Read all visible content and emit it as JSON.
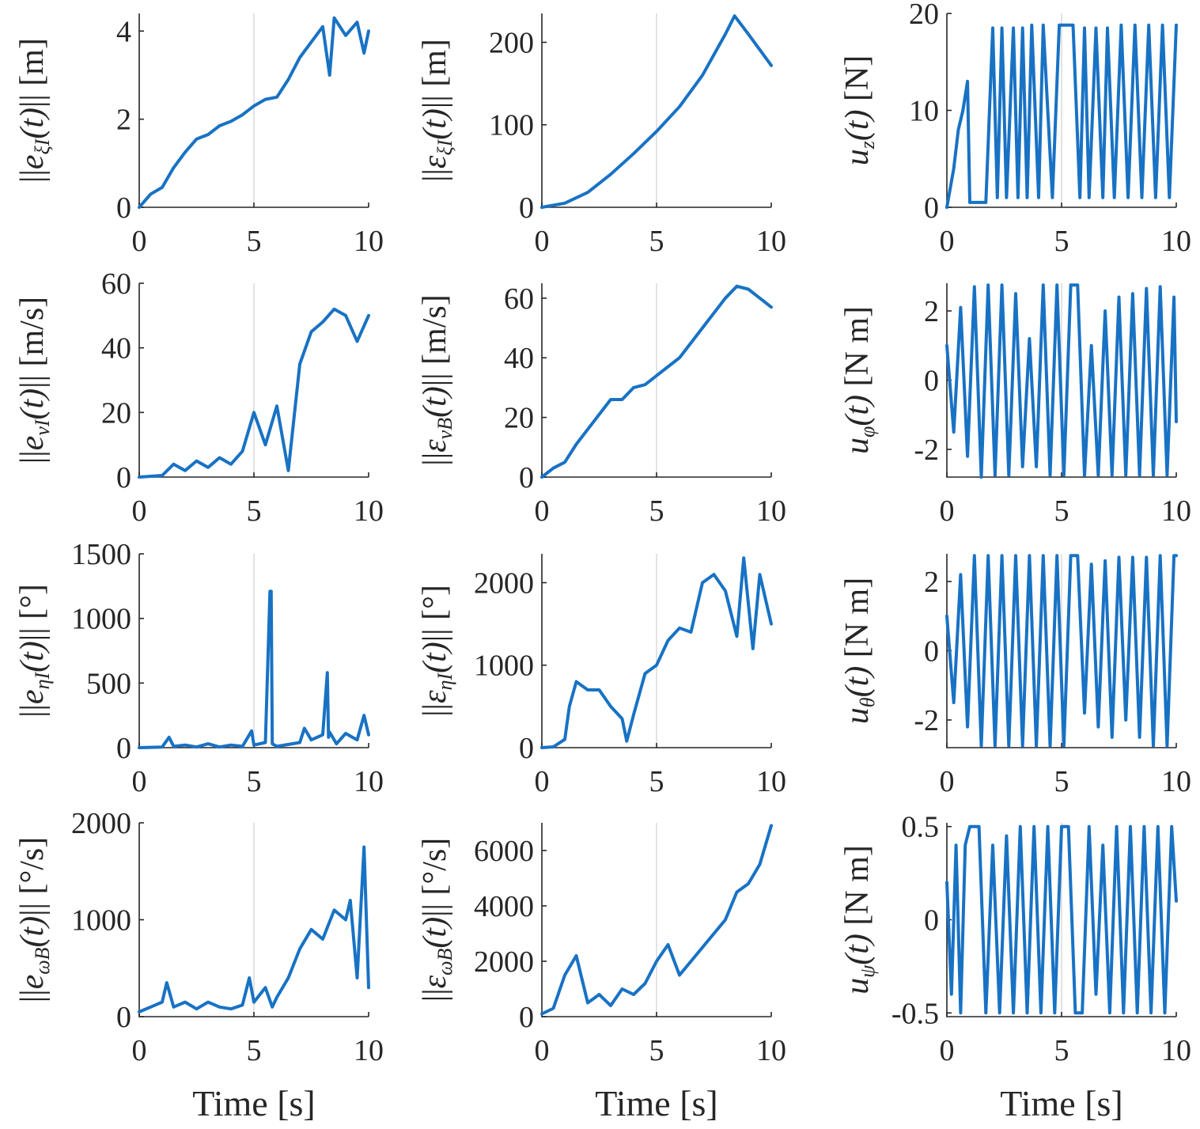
{
  "figure": {
    "line_color": "#1872c4",
    "grid_color": "#dcdcdc",
    "axis_color": "#262626"
  },
  "chart_data": [
    {
      "id": "p1",
      "type": "line",
      "ylabel": "||e_ξI(t)|| [m]",
      "xlabel": "",
      "xlim": [
        0,
        10
      ],
      "ylim": [
        0,
        4.4
      ],
      "xticks": [
        0,
        5,
        10
      ],
      "yticks": [
        0,
        2,
        4
      ],
      "ytick_labels": [
        "0",
        "2",
        "4"
      ],
      "grid_x": [
        5
      ],
      "x": [
        0,
        0.5,
        1,
        1.5,
        2,
        2.5,
        3,
        3.5,
        4,
        4.5,
        5,
        5.5,
        6,
        6.5,
        7,
        7.5,
        8,
        8.3,
        8.5,
        9,
        9.5,
        9.8,
        10
      ],
      "y": [
        0,
        0.3,
        0.45,
        0.9,
        1.25,
        1.55,
        1.65,
        1.85,
        1.95,
        2.1,
        2.3,
        2.45,
        2.5,
        2.9,
        3.4,
        3.75,
        4.1,
        3.0,
        4.3,
        3.9,
        4.2,
        3.5,
        4.0
      ]
    },
    {
      "id": "p2",
      "type": "line",
      "ylabel": "||ε_ξI(t)|| [m]",
      "xlabel": "",
      "xlim": [
        0,
        10
      ],
      "ylim": [
        0,
        235
      ],
      "xticks": [
        0,
        5,
        10
      ],
      "yticks": [
        0,
        100,
        200
      ],
      "ytick_labels": [
        "0",
        "100",
        "200"
      ],
      "grid_x": [
        5
      ],
      "x": [
        0,
        1,
        2,
        3,
        4,
        5,
        6,
        7,
        8,
        8.4,
        9,
        10
      ],
      "y": [
        0,
        5,
        18,
        40,
        65,
        92,
        122,
        160,
        210,
        232,
        210,
        172
      ]
    },
    {
      "id": "p3",
      "type": "line",
      "ylabel": "u_z(t) [N]",
      "xlabel": "",
      "xlim": [
        0,
        10
      ],
      "ylim": [
        0,
        20
      ],
      "xticks": [
        0,
        5,
        10
      ],
      "yticks": [
        0,
        10,
        20
      ],
      "ytick_labels": [
        "0",
        "10",
        "20"
      ],
      "grid_x": [
        5
      ],
      "x": [
        0,
        0.3,
        0.5,
        0.7,
        0.9,
        1.0,
        1.5,
        1.7,
        2.0,
        2.2,
        2.4,
        2.6,
        2.9,
        3.1,
        3.3,
        3.5,
        3.7,
        4.0,
        4.2,
        4.6,
        4.9,
        5.2,
        5.5,
        5.8,
        6.0,
        6.2,
        6.5,
        6.8,
        7.0,
        7.3,
        7.6,
        7.9,
        8.2,
        8.5,
        8.8,
        9.1,
        9.4,
        9.7,
        10
      ],
      "y": [
        0,
        4,
        8,
        10,
        13,
        0.5,
        0.5,
        0.5,
        18.5,
        1,
        18.5,
        1,
        18.5,
        1,
        18.5,
        1,
        18.8,
        1,
        18.8,
        1,
        18.8,
        18.8,
        18.8,
        1,
        18.5,
        1,
        18.5,
        1,
        18.5,
        1,
        18.8,
        1,
        18.8,
        1,
        18.8,
        1,
        18.8,
        1,
        18.8
      ]
    },
    {
      "id": "p4",
      "type": "line",
      "ylabel": "||e_νI(t)|| [m/s]",
      "xlabel": "",
      "xlim": [
        0,
        10
      ],
      "ylim": [
        0,
        60
      ],
      "xticks": [
        0,
        5,
        10
      ],
      "yticks": [
        0,
        20,
        40,
        60
      ],
      "ytick_labels": [
        "0",
        "20",
        "40",
        "60"
      ],
      "grid_x": [
        5
      ],
      "x": [
        0,
        1,
        1.5,
        2,
        2.5,
        3,
        3.5,
        4,
        4.5,
        5,
        5.5,
        6,
        6.5,
        7,
        7.5,
        8,
        8.5,
        9,
        9.5,
        10
      ],
      "y": [
        0,
        0.5,
        4,
        2,
        5,
        3,
        6,
        4,
        8,
        20,
        10,
        22,
        2,
        35,
        45,
        48,
        52,
        50,
        42,
        50
      ]
    },
    {
      "id": "p5",
      "type": "line",
      "ylabel": "||ε_νB(t)|| [m/s]",
      "xlabel": "",
      "xlim": [
        0,
        10
      ],
      "ylim": [
        0,
        65
      ],
      "xticks": [
        0,
        5,
        10
      ],
      "yticks": [
        0,
        20,
        40,
        60
      ],
      "ytick_labels": [
        "0",
        "20",
        "40",
        "60"
      ],
      "grid_x": [
        5
      ],
      "x": [
        0,
        0.5,
        1,
        1.5,
        2,
        2.5,
        3,
        3.5,
        4,
        4.5,
        5,
        5.5,
        6,
        6.5,
        7,
        7.5,
        8,
        8.5,
        9,
        9.5,
        10
      ],
      "y": [
        0,
        3,
        5,
        11,
        16,
        21,
        26,
        26,
        30,
        31,
        34,
        37,
        40,
        45,
        50,
        55,
        60,
        64,
        63,
        60,
        57
      ]
    },
    {
      "id": "p6",
      "type": "line",
      "ylabel": "u_φ(t) [N m]",
      "xlabel": "",
      "xlim": [
        0,
        10
      ],
      "ylim": [
        -2.8,
        2.8
      ],
      "xticks": [
        0,
        5,
        10
      ],
      "yticks": [
        -2,
        0,
        2
      ],
      "ytick_labels": [
        "-2",
        "0",
        "2"
      ],
      "grid_x": [
        5
      ],
      "x": [
        0,
        0.3,
        0.6,
        0.9,
        1.2,
        1.5,
        1.8,
        2.1,
        2.4,
        2.7,
        3.0,
        3.3,
        3.6,
        3.9,
        4.2,
        4.5,
        4.8,
        5.1,
        5.4,
        5.7,
        6.0,
        6.3,
        6.6,
        6.9,
        7.2,
        7.5,
        7.8,
        8.1,
        8.4,
        8.7,
        9.0,
        9.3,
        9.6,
        9.9,
        10
      ],
      "y": [
        1,
        -1.5,
        2.1,
        -2.2,
        2.7,
        -2.8,
        2.75,
        -2.75,
        2.75,
        -2.75,
        2.5,
        -2.5,
        1.2,
        -2.5,
        2.75,
        -2.75,
        2.75,
        -2.75,
        2.75,
        2.75,
        -2.75,
        1.0,
        -2.75,
        2.0,
        -2.75,
        2.4,
        -2.75,
        2.5,
        -2.75,
        2.65,
        -2.75,
        2.7,
        -2.75,
        2.4,
        -1.2
      ]
    },
    {
      "id": "p7",
      "type": "line",
      "ylabel": "||e_ηI(t)|| [°]",
      "xlabel": "",
      "xlim": [
        0,
        10
      ],
      "ylim": [
        0,
        1500
      ],
      "xticks": [
        0,
        5,
        10
      ],
      "yticks": [
        0,
        500,
        1000,
        1500
      ],
      "ytick_labels": [
        "0",
        "500",
        "1000",
        "1500"
      ],
      "grid_x": [
        5
      ],
      "x": [
        0,
        1,
        1.3,
        1.5,
        2,
        2.5,
        3,
        3.5,
        4,
        4.5,
        4.9,
        5,
        5.5,
        5.7,
        5.75,
        5.8,
        6,
        7,
        7.2,
        7.5,
        8,
        8.2,
        8.25,
        8.3,
        8.6,
        9,
        9.5,
        9.8,
        10
      ],
      "y": [
        0,
        5,
        80,
        10,
        20,
        5,
        30,
        5,
        20,
        10,
        130,
        20,
        40,
        1210,
        1210,
        30,
        10,
        40,
        150,
        60,
        100,
        580,
        80,
        120,
        30,
        110,
        60,
        250,
        100
      ]
    },
    {
      "id": "p8",
      "type": "line",
      "ylabel": "||ε_ηI(t)|| [°]",
      "xlabel": "",
      "xlim": [
        0,
        10
      ],
      "ylim": [
        0,
        2350
      ],
      "xticks": [
        0,
        5,
        10
      ],
      "yticks": [
        0,
        1000,
        2000
      ],
      "ytick_labels": [
        "0",
        "1000",
        "2000"
      ],
      "grid_x": [
        5
      ],
      "x": [
        0,
        0.5,
        1,
        1.2,
        1.5,
        2,
        2.5,
        3,
        3.5,
        3.7,
        4,
        4.5,
        5,
        5.5,
        6,
        6.5,
        7,
        7.5,
        8,
        8.5,
        8.8,
        9.2,
        9.5,
        10
      ],
      "y": [
        0,
        10,
        100,
        500,
        800,
        700,
        700,
        500,
        350,
        80,
        400,
        900,
        1000,
        1300,
        1450,
        1400,
        2000,
        2100,
        1900,
        1350,
        2300,
        1200,
        2100,
        1500
      ]
    },
    {
      "id": "p9",
      "type": "line",
      "ylabel": "u_θ(t) [N m]",
      "xlabel": "",
      "xlim": [
        0,
        10
      ],
      "ylim": [
        -2.8,
        2.8
      ],
      "xticks": [
        0,
        5,
        10
      ],
      "yticks": [
        -2,
        0,
        2
      ],
      "ytick_labels": [
        "-2",
        "0",
        "2"
      ],
      "grid_x": [
        5
      ],
      "x": [
        0,
        0.3,
        0.6,
        0.9,
        1.2,
        1.5,
        1.8,
        2.1,
        2.4,
        2.7,
        3.0,
        3.3,
        3.6,
        3.9,
        4.2,
        4.5,
        4.8,
        5.1,
        5.4,
        5.7,
        6.0,
        6.3,
        6.6,
        6.9,
        7.2,
        7.5,
        7.8,
        8.1,
        8.4,
        8.7,
        9.0,
        9.3,
        9.6,
        9.9,
        10
      ],
      "y": [
        1,
        -1.5,
        2.2,
        -2.2,
        2.75,
        -2.75,
        2.75,
        -2.75,
        2.75,
        -2.75,
        2.75,
        -2.75,
        2.75,
        -2.75,
        2.75,
        -2.75,
        2.75,
        -2.75,
        2.75,
        2.75,
        -1.8,
        2.5,
        -2.2,
        2.6,
        -2.5,
        2.7,
        -2.0,
        2.7,
        -2.5,
        2.7,
        -2.75,
        2.75,
        -2.75,
        2.75,
        2.75
      ]
    },
    {
      "id": "p10",
      "type": "line",
      "ylabel": "||e_ωB(t)|| [°/s]",
      "xlabel": "Time [s]",
      "xlim": [
        0,
        10
      ],
      "ylim": [
        0,
        2000
      ],
      "xticks": [
        0,
        5,
        10
      ],
      "yticks": [
        0,
        1000,
        2000
      ],
      "ytick_labels": [
        "0",
        "1000",
        "2000"
      ],
      "grid_x": [
        5
      ],
      "x": [
        0,
        0.5,
        1,
        1.2,
        1.5,
        2,
        2.5,
        3,
        3.5,
        4,
        4.5,
        4.8,
        5,
        5.5,
        5.8,
        6,
        6.5,
        7,
        7.5,
        8,
        8.5,
        9,
        9.2,
        9.5,
        9.8,
        10
      ],
      "y": [
        50,
        100,
        150,
        350,
        100,
        150,
        80,
        150,
        100,
        80,
        120,
        400,
        150,
        300,
        100,
        200,
        400,
        700,
        900,
        800,
        1100,
        1000,
        1200,
        400,
        1750,
        300
      ]
    },
    {
      "id": "p11",
      "type": "line",
      "ylabel": "||ε_ωB(t)|| [°/s]",
      "xlabel": "Time [s]",
      "xlim": [
        0,
        10
      ],
      "ylim": [
        0,
        7000
      ],
      "xticks": [
        0,
        5,
        10
      ],
      "yticks": [
        0,
        2000,
        4000,
        6000
      ],
      "ytick_labels": [
        "0",
        "2000",
        "4000",
        "6000"
      ],
      "grid_x": [
        5
      ],
      "x": [
        0,
        0.5,
        1,
        1.5,
        2,
        2.5,
        3,
        3.5,
        4,
        4.5,
        5,
        5.5,
        6,
        6.5,
        7,
        7.5,
        8,
        8.5,
        9,
        9.5,
        10
      ],
      "y": [
        100,
        300,
        1500,
        2200,
        500,
        800,
        400,
        1000,
        800,
        1200,
        2000,
        2600,
        1500,
        2000,
        2500,
        3000,
        3500,
        4500,
        4800,
        5500,
        6900
      ]
    },
    {
      "id": "p12",
      "type": "line",
      "ylabel": "u_ψ(t) [N m]",
      "xlabel": "Time [s]",
      "xlim": [
        0,
        10
      ],
      "ylim": [
        -0.52,
        0.52
      ],
      "xticks": [
        0,
        5,
        10
      ],
      "yticks": [
        -0.5,
        0,
        0.5
      ],
      "ytick_labels": [
        "-0.5",
        "0",
        "0.5"
      ],
      "grid_x": [
        5
      ],
      "x": [
        0,
        0.2,
        0.4,
        0.6,
        0.8,
        1.0,
        1.4,
        1.7,
        2.0,
        2.3,
        2.6,
        2.9,
        3.2,
        3.5,
        3.8,
        4.1,
        4.4,
        4.7,
        5.0,
        5.3,
        5.6,
        5.9,
        6.2,
        6.5,
        6.8,
        7.1,
        7.4,
        7.7,
        8.0,
        8.3,
        8.6,
        8.9,
        9.2,
        9.5,
        9.8,
        10
      ],
      "y": [
        0.2,
        -0.4,
        0.4,
        -0.5,
        0.4,
        0.5,
        0.5,
        -0.5,
        0.4,
        -0.5,
        0.45,
        -0.5,
        0.5,
        -0.5,
        0.5,
        -0.5,
        0.5,
        -0.5,
        0.5,
        0.5,
        -0.5,
        -0.5,
        0.5,
        -0.4,
        0.4,
        -0.5,
        0.5,
        -0.5,
        0.5,
        -0.5,
        0.5,
        -0.5,
        0.5,
        -0.5,
        0.5,
        0.1
      ]
    }
  ]
}
